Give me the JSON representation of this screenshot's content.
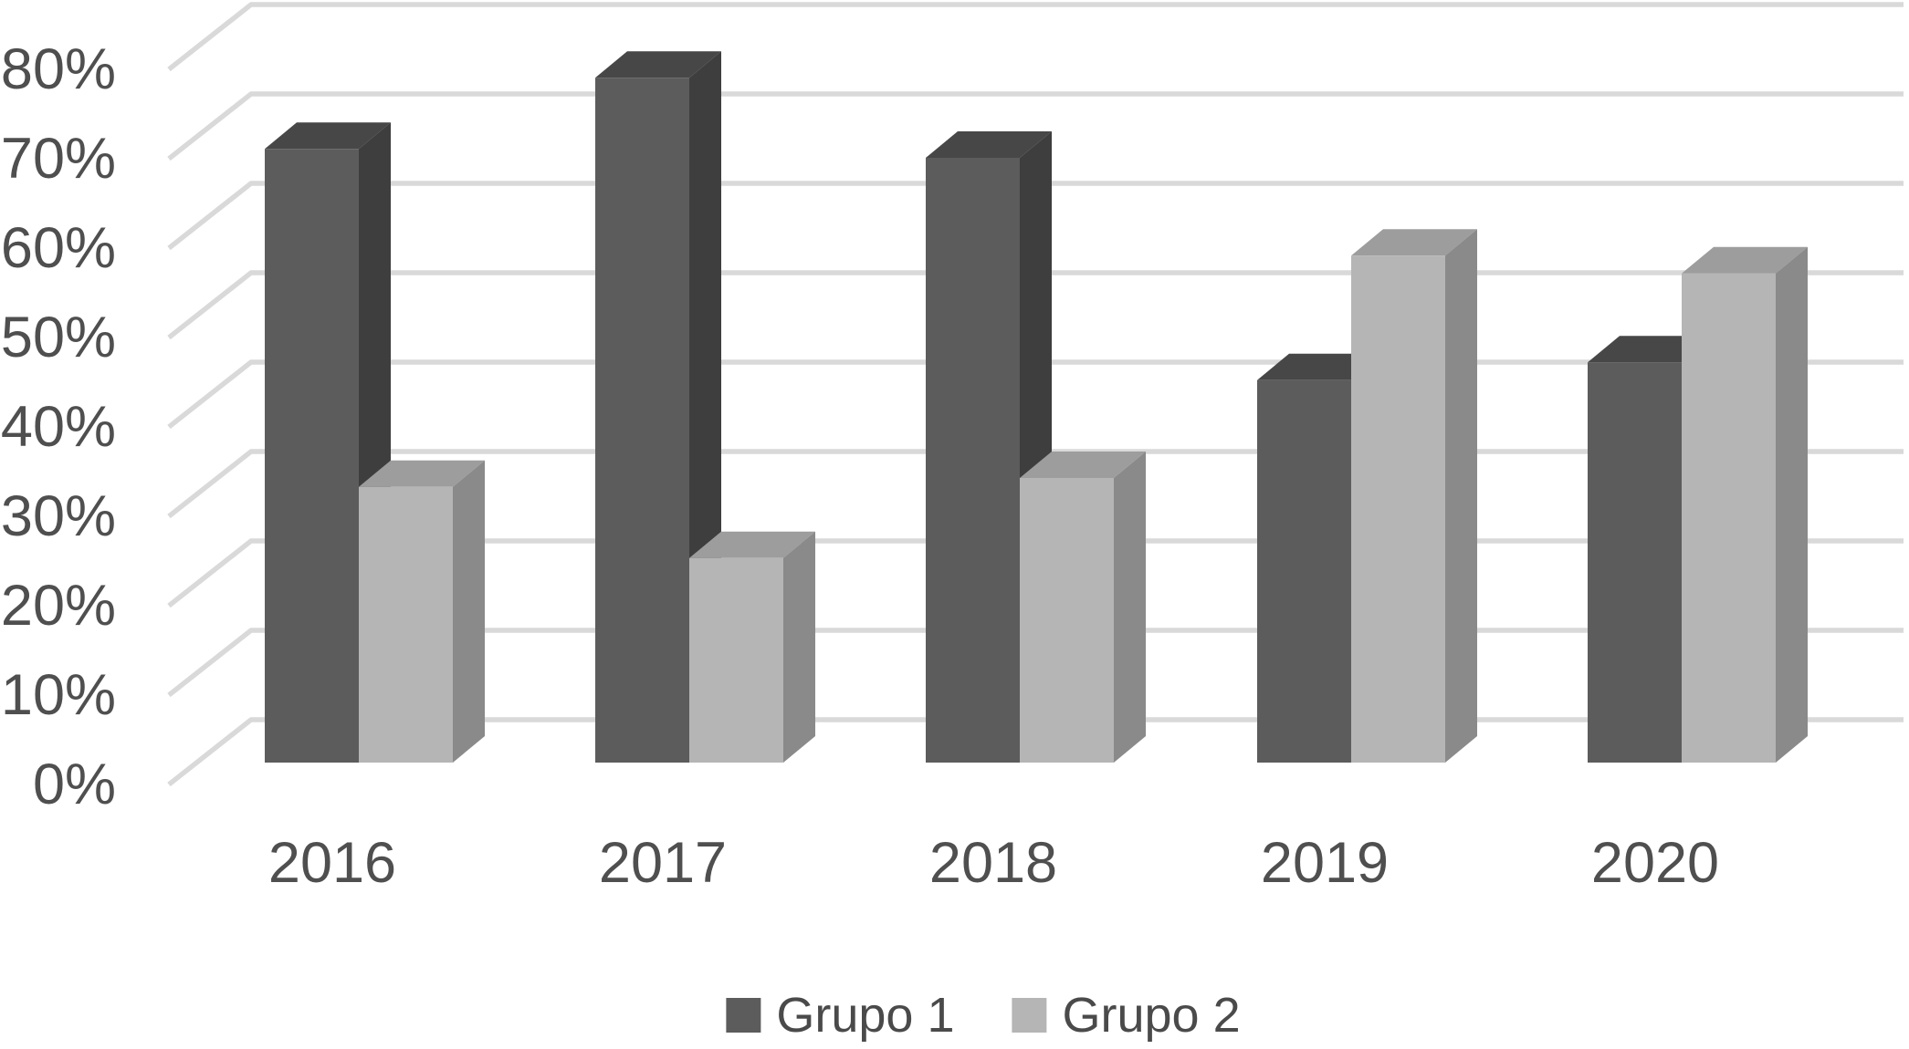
{
  "chart_data": {
    "type": "bar",
    "variant": "3d-clustered-column",
    "title": "",
    "xlabel": "",
    "ylabel": "",
    "categories": [
      "2016",
      "2017",
      "2018",
      "2019",
      "2020"
    ],
    "series": [
      {
        "name": "Grupo 1",
        "values": [
          69,
          77,
          68,
          43,
          45
        ]
      },
      {
        "name": "Grupo 2",
        "values": [
          31,
          23,
          32,
          57,
          55
        ]
      }
    ],
    "value_unit": "percent",
    "y_axis": {
      "min": 0,
      "max": 80,
      "step": 10,
      "tick_labels": [
        "0%",
        "10%",
        "20%",
        "30%",
        "40%",
        "50%",
        "60%",
        "70%",
        "80%"
      ]
    },
    "grid": true,
    "legend_position": "bottom"
  },
  "legend": {
    "items": [
      {
        "label": "Grupo 1",
        "color": "#5c5c5c"
      },
      {
        "label": "Grupo 2",
        "color": "#b5b5b5"
      }
    ]
  },
  "palette": {
    "background": "#ffffff",
    "gridline": "#d9d9d9",
    "axis_text": "#4f4f4f",
    "series": [
      {
        "front": "#5c5c5c",
        "top": "#474747",
        "side": "#3e3e3e"
      },
      {
        "front": "#b5b5b5",
        "top": "#9d9d9d",
        "side": "#8a8a8a"
      }
    ]
  }
}
